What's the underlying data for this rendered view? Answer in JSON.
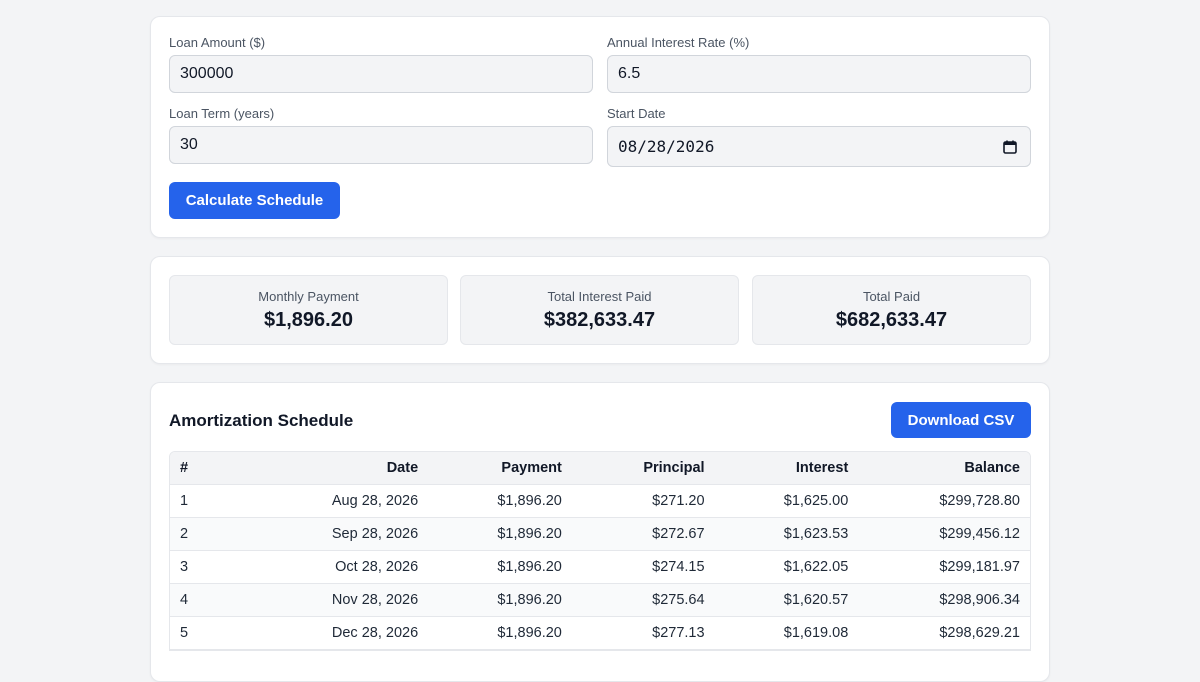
{
  "inputs": {
    "loan_amount": {
      "label": "Loan Amount ($)",
      "value": "300000"
    },
    "interest_rate": {
      "label": "Annual Interest Rate (%)",
      "value": "6.5"
    },
    "loan_term": {
      "label": "Loan Term (years)",
      "value": "30"
    },
    "start_date": {
      "label": "Start Date",
      "value": "08/28/2026"
    },
    "calculate_label": "Calculate Schedule"
  },
  "summary": {
    "monthly_payment": {
      "label": "Monthly Payment",
      "value": "$1,896.20"
    },
    "total_interest": {
      "label": "Total Interest Paid",
      "value": "$382,633.47"
    },
    "total_paid": {
      "label": "Total Paid",
      "value": "$682,633.47"
    }
  },
  "schedule": {
    "title": "Amortization Schedule",
    "download_label": "Download CSV",
    "columns": [
      "#",
      "Date",
      "Payment",
      "Principal",
      "Interest",
      "Balance"
    ],
    "rows": [
      [
        "1",
        "Aug 28, 2026",
        "$1,896.20",
        "$271.20",
        "$1,625.00",
        "$299,728.80"
      ],
      [
        "2",
        "Sep 28, 2026",
        "$1,896.20",
        "$272.67",
        "$1,623.53",
        "$299,456.12"
      ],
      [
        "3",
        "Oct 28, 2026",
        "$1,896.20",
        "$274.15",
        "$1,622.05",
        "$299,181.97"
      ],
      [
        "4",
        "Nov 28, 2026",
        "$1,896.20",
        "$275.64",
        "$1,620.57",
        "$298,906.34"
      ],
      [
        "5",
        "Dec 28, 2026",
        "$1,896.20",
        "$277.13",
        "$1,619.08",
        "$298,629.21"
      ]
    ]
  },
  "colors": {
    "accent": "#2563eb",
    "background": "#f3f4f6",
    "card": "#ffffff"
  },
  "icons": {
    "date_picker": "calendar-icon"
  }
}
